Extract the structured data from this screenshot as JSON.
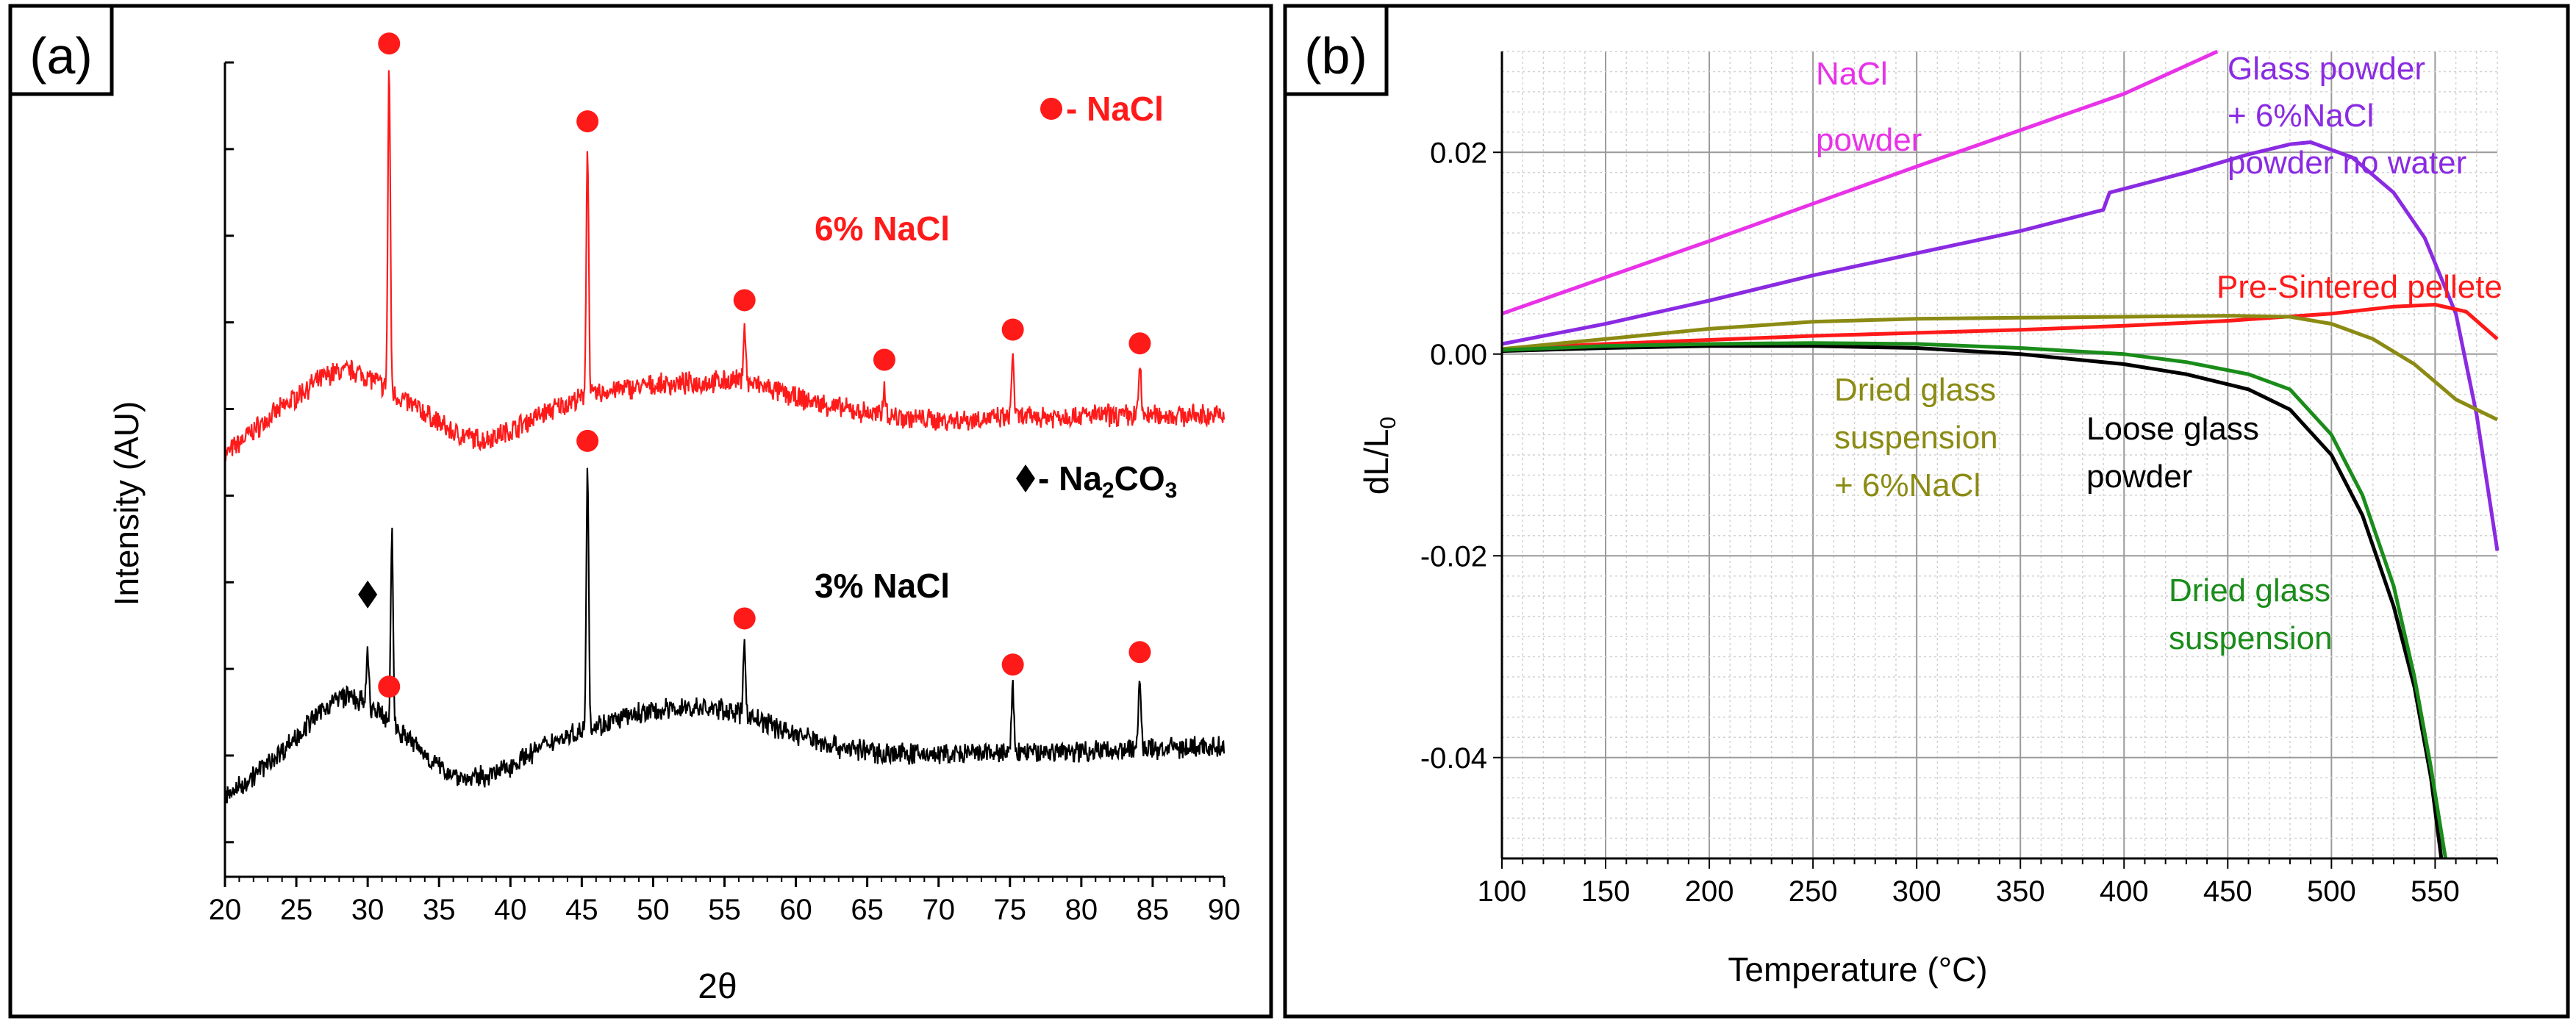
{
  "chart_data": [
    {
      "panel": "(a)",
      "type": "line",
      "title": "",
      "xlabel": "2θ",
      "ylabel": "Intensity (AU)",
      "xlim": [
        20,
        90
      ],
      "x_ticks": [
        20,
        25,
        30,
        35,
        40,
        45,
        50,
        55,
        60,
        65,
        70,
        75,
        80,
        85,
        90
      ],
      "y_tick_labels_shown": false,
      "grid": false,
      "series": [
        {
          "name": "6% NaCl",
          "color": "#ff1a1a",
          "label": "6% NaCl",
          "profile": [
            [
              20,
              0.06
            ],
            [
              22,
              0.16
            ],
            [
              24,
              0.25
            ],
            [
              26,
              0.34
            ],
            [
              27.5,
              0.39
            ],
            [
              29,
              0.4
            ],
            [
              30.5,
              0.36
            ],
            [
              32,
              0.3
            ],
            [
              34,
              0.23
            ],
            [
              36,
              0.15
            ],
            [
              38,
              0.12
            ],
            [
              40,
              0.16
            ],
            [
              42,
              0.22
            ],
            [
              44,
              0.27
            ],
            [
              47,
              0.32
            ],
            [
              50,
              0.34
            ],
            [
              53,
              0.35
            ],
            [
              56,
              0.36
            ],
            [
              58,
              0.33
            ],
            [
              60,
              0.29
            ],
            [
              63,
              0.25
            ],
            [
              66,
              0.22
            ],
            [
              70,
              0.2
            ],
            [
              75,
              0.21
            ],
            [
              80,
              0.22
            ],
            [
              85,
              0.22
            ],
            [
              90,
              0.22
            ]
          ],
          "peaks": [
            [
              31.5,
              1.0
            ],
            [
              45.4,
              0.78
            ],
            [
              56.4,
              0.18
            ],
            [
              66.2,
              0.1
            ],
            [
              75.2,
              0.2
            ],
            [
              84.1,
              0.15
            ]
          ]
        },
        {
          "name": "3% NaCl",
          "color": "#000000",
          "label": "3% NaCl",
          "profile": [
            [
              20,
              0.05
            ],
            [
              22,
              0.16
            ],
            [
              24,
              0.28
            ],
            [
              26,
              0.42
            ],
            [
              27.5,
              0.52
            ],
            [
              28.5,
              0.55
            ],
            [
              29.5,
              0.52
            ],
            [
              31,
              0.45
            ],
            [
              33,
              0.33
            ],
            [
              35,
              0.2
            ],
            [
              37,
              0.14
            ],
            [
              39,
              0.17
            ],
            [
              41,
              0.25
            ],
            [
              43,
              0.33
            ],
            [
              46,
              0.4
            ],
            [
              49,
              0.46
            ],
            [
              52,
              0.49
            ],
            [
              55,
              0.48
            ],
            [
              57,
              0.44
            ],
            [
              60,
              0.36
            ],
            [
              63,
              0.3
            ],
            [
              66,
              0.27
            ],
            [
              70,
              0.26
            ],
            [
              75,
              0.27
            ],
            [
              80,
              0.28
            ],
            [
              85,
              0.29
            ],
            [
              90,
              0.3
            ]
          ],
          "peaks": [
            [
              30.0,
              0.18
            ],
            [
              31.7,
              0.65
            ],
            [
              45.4,
              0.9
            ],
            [
              56.4,
              0.25
            ],
            [
              75.2,
              0.22
            ],
            [
              84.1,
              0.25
            ]
          ]
        }
      ],
      "markers": [
        {
          "symbol": "circle",
          "color": "#ff1a1a",
          "x": 31.5,
          "series": "6% NaCl"
        },
        {
          "symbol": "circle",
          "color": "#ff1a1a",
          "x": 45.4,
          "series": "6% NaCl"
        },
        {
          "symbol": "circle",
          "color": "#ff1a1a",
          "x": 56.4,
          "series": "6% NaCl"
        },
        {
          "symbol": "circle",
          "color": "#ff1a1a",
          "x": 66.2,
          "series": "6% NaCl"
        },
        {
          "symbol": "circle",
          "color": "#ff1a1a",
          "x": 75.2,
          "series": "6% NaCl"
        },
        {
          "symbol": "circle",
          "color": "#ff1a1a",
          "x": 84.1,
          "series": "6% NaCl"
        },
        {
          "symbol": "circle",
          "color": "#ff1a1a",
          "x": 31.5,
          "series": "3% NaCl"
        },
        {
          "symbol": "circle",
          "color": "#ff1a1a",
          "x": 45.4,
          "series": "3% NaCl"
        },
        {
          "symbol": "circle",
          "color": "#ff1a1a",
          "x": 56.4,
          "series": "3% NaCl"
        },
        {
          "symbol": "circle",
          "color": "#ff1a1a",
          "x": 75.2,
          "series": "3% NaCl"
        },
        {
          "symbol": "circle",
          "color": "#ff1a1a",
          "x": 84.1,
          "series": "3% NaCl"
        },
        {
          "symbol": "diamond",
          "color": "#000000",
          "x": 30.0,
          "series": "3% NaCl"
        }
      ],
      "legend": [
        {
          "symbol": "circle",
          "color": "#ff1a1a",
          "label": "- NaCl"
        },
        {
          "symbol": "diamond",
          "color": "#000000",
          "label_pre": "- Na",
          "sub1": "2",
          "label_mid": "CO",
          "sub2": "3"
        }
      ]
    },
    {
      "panel": "(b)",
      "type": "line",
      "title": "",
      "xlabel": "Temperature (°C)",
      "ylabel_main": "dL/L",
      "ylabel_sub": "0",
      "xlim": [
        100,
        580
      ],
      "ylim": [
        -0.05,
        0.03
      ],
      "x_ticks": [
        100,
        150,
        200,
        250,
        300,
        350,
        400,
        450,
        500,
        550
      ],
      "y_ticks": [
        {
          "value": 0.02,
          "label": "0.02"
        },
        {
          "value": 0.0,
          "label": "0.00"
        },
        {
          "value": -0.02,
          "label": "-0.02"
        },
        {
          "value": -0.04,
          "label": "-0.04"
        }
      ],
      "grid": true,
      "series": [
        {
          "name": "NaCl powder",
          "color": "#e832e8",
          "label_lines": [
            "NaCl",
            "powder"
          ],
          "points": [
            [
              100,
              0.004
            ],
            [
              150,
              0.0076
            ],
            [
              200,
              0.0112
            ],
            [
              250,
              0.0149
            ],
            [
              300,
              0.0186
            ],
            [
              350,
              0.0222
            ],
            [
              400,
              0.0258
            ],
            [
              445,
              0.03
            ]
          ]
        },
        {
          "name": "Glass powder + 6%NaCl powder no water",
          "color": "#8a2be2",
          "label_lines": [
            "Glass powder",
            "+ 6%NaCl",
            "powder no water"
          ],
          "points": [
            [
              100,
              0.001
            ],
            [
              150,
              0.003
            ],
            [
              200,
              0.0053
            ],
            [
              250,
              0.0078
            ],
            [
              300,
              0.01
            ],
            [
              350,
              0.0122
            ],
            [
              390,
              0.0143
            ],
            [
              393,
              0.016
            ],
            [
              430,
              0.018
            ],
            [
              460,
              0.0198
            ],
            [
              480,
              0.0208
            ],
            [
              490,
              0.021
            ],
            [
              510,
              0.0195
            ],
            [
              530,
              0.016
            ],
            [
              545,
              0.0115
            ],
            [
              560,
              0.004
            ],
            [
              570,
              -0.006
            ],
            [
              580,
              -0.0195
            ]
          ]
        },
        {
          "name": "Pre-Sintered pellete",
          "color": "#ff1a1a",
          "label_lines": [
            "Pre-Sintered pellete"
          ],
          "points": [
            [
              100,
              0.0005
            ],
            [
              150,
              0.001
            ],
            [
              200,
              0.0014
            ],
            [
              250,
              0.0018
            ],
            [
              300,
              0.0021
            ],
            [
              350,
              0.0024
            ],
            [
              400,
              0.0028
            ],
            [
              450,
              0.0033
            ],
            [
              500,
              0.004
            ],
            [
              530,
              0.0047
            ],
            [
              550,
              0.0049
            ],
            [
              565,
              0.0042
            ],
            [
              580,
              0.0015
            ]
          ]
        },
        {
          "name": "Dried glass suspension + 6%NaCl",
          "color": "#8b8b14",
          "label_lines": [
            "Dried glass",
            "suspension",
            "+ 6%NaCl"
          ],
          "points": [
            [
              100,
              0.0005
            ],
            [
              150,
              0.0015
            ],
            [
              200,
              0.0025
            ],
            [
              250,
              0.0032
            ],
            [
              300,
              0.0035
            ],
            [
              350,
              0.0036
            ],
            [
              400,
              0.0037
            ],
            [
              450,
              0.0038
            ],
            [
              480,
              0.0037
            ],
            [
              500,
              0.003
            ],
            [
              520,
              0.0015
            ],
            [
              540,
              -0.001
            ],
            [
              560,
              -0.0045
            ],
            [
              580,
              -0.0065
            ]
          ]
        },
        {
          "name": "Loose glass powder",
          "color": "#000000",
          "label_lines": [
            "Loose glass",
            "powder"
          ],
          "points": [
            [
              100,
              0.0003
            ],
            [
              150,
              0.0006
            ],
            [
              200,
              0.0008
            ],
            [
              250,
              0.0008
            ],
            [
              300,
              0.0006
            ],
            [
              350,
              0.0
            ],
            [
              400,
              -0.001
            ],
            [
              430,
              -0.002
            ],
            [
              460,
              -0.0035
            ],
            [
              480,
              -0.0055
            ],
            [
              500,
              -0.01
            ],
            [
              515,
              -0.016
            ],
            [
              530,
              -0.025
            ],
            [
              540,
              -0.033
            ],
            [
              548,
              -0.042
            ],
            [
              553,
              -0.05
            ]
          ]
        },
        {
          "name": "Dried glass suspension",
          "color": "#1a8c1a",
          "label_lines": [
            "Dried glass",
            "suspension"
          ],
          "points": [
            [
              100,
              0.0004
            ],
            [
              150,
              0.0008
            ],
            [
              200,
              0.001
            ],
            [
              250,
              0.0011
            ],
            [
              300,
              0.001
            ],
            [
              350,
              0.0006
            ],
            [
              400,
              0.0
            ],
            [
              430,
              -0.0008
            ],
            [
              460,
              -0.002
            ],
            [
              480,
              -0.0035
            ],
            [
              500,
              -0.008
            ],
            [
              515,
              -0.014
            ],
            [
              530,
              -0.023
            ],
            [
              540,
              -0.032
            ],
            [
              548,
              -0.041
            ],
            [
              555,
              -0.05
            ]
          ]
        }
      ]
    }
  ]
}
